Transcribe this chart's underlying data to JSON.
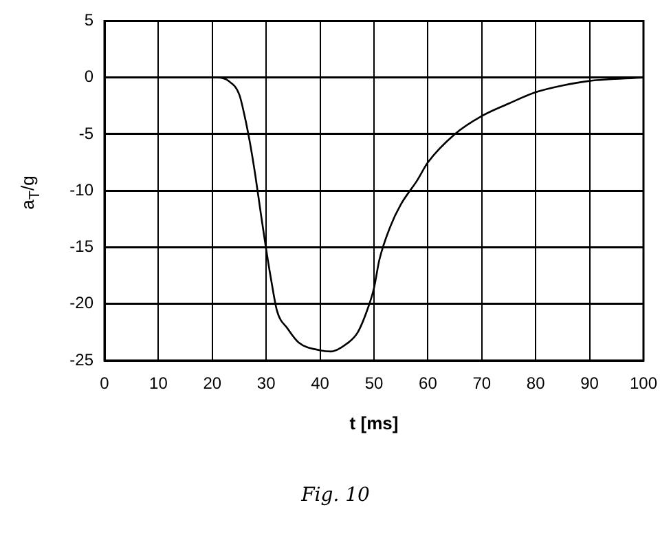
{
  "chart_data": {
    "type": "line",
    "xlabel": "t [ms]",
    "ylabel": "a$_{T}$/g",
    "annotations": [
      "Fig. 10"
    ],
    "x": [
      0,
      21,
      23,
      25,
      26,
      27,
      28,
      29,
      30,
      31,
      32,
      34,
      36,
      40,
      42,
      45,
      47,
      49,
      50,
      51,
      53,
      55,
      58,
      60,
      65,
      70,
      75,
      80,
      85,
      90,
      100
    ],
    "series": [
      {
        "color": "#000000",
        "values": [
          0,
          0,
          -0.3,
          -1.5,
          -3.4,
          -5.8,
          -8.7,
          -12,
          -15.2,
          -18.1,
          -20.6,
          -22.2,
          -23.4,
          -24.1,
          -24.2,
          -23.5,
          -22.5,
          -20.2,
          -18.6,
          -16.1,
          -13.2,
          -11.2,
          -9.1,
          -7.5,
          -5,
          -3.4,
          -2.3,
          -1.3,
          -0.7,
          -0.3,
          0
        ]
      }
    ],
    "xlim": [
      0,
      100
    ],
    "xticks": [
      0,
      10,
      20,
      30,
      40,
      50,
      60,
      70,
      80,
      90,
      100
    ],
    "ylim": [
      -25,
      5
    ],
    "yticks": [
      -25,
      -20,
      -15,
      -10,
      -5,
      0,
      5
    ],
    "grid": true,
    "legend": false,
    "marker": "none",
    "line_style": "solid"
  }
}
